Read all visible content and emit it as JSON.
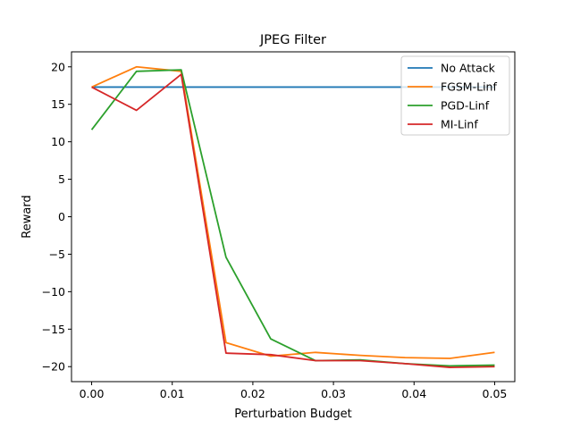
{
  "chart_data": {
    "type": "line",
    "title": "JPEG Filter",
    "xlabel": "Perturbation Budget",
    "ylabel": "Reward",
    "xlim": [
      -0.0025,
      0.0525
    ],
    "ylim": [
      -22,
      22
    ],
    "xticks": [
      0.0,
      0.01,
      0.02,
      0.03,
      0.04,
      0.05
    ],
    "xtick_labels": [
      "0.00",
      "0.01",
      "0.02",
      "0.03",
      "0.04",
      "0.05"
    ],
    "yticks": [
      -20,
      -15,
      -10,
      -5,
      0,
      5,
      10,
      15,
      20
    ],
    "ytick_labels": [
      "−20",
      "−15",
      "−10",
      "−5",
      "0",
      "5",
      "10",
      "15",
      "20"
    ],
    "grid": false,
    "legend_position": "top-right",
    "x": [
      0.0,
      0.00556,
      0.01111,
      0.01667,
      0.02222,
      0.02778,
      0.03333,
      0.03889,
      0.04444,
      0.05
    ],
    "series": [
      {
        "name": "No Attack",
        "color": "#1f77b4",
        "values": [
          17.3,
          17.3,
          17.3,
          17.3,
          17.3,
          17.3,
          17.3,
          17.3,
          17.3,
          17.3
        ]
      },
      {
        "name": "FGSM-Linf",
        "color": "#ff7f0e",
        "values": [
          17.3,
          20.0,
          19.4,
          -16.8,
          -18.6,
          -18.1,
          -18.5,
          -18.8,
          -18.9,
          -18.1
        ]
      },
      {
        "name": "PGD-Linf",
        "color": "#2ca02c",
        "values": [
          11.6,
          19.4,
          19.6,
          -5.4,
          -16.3,
          -19.2,
          -19.1,
          -19.6,
          -19.9,
          -19.8
        ]
      },
      {
        "name": "MI-Linf",
        "color": "#d62728",
        "values": [
          17.3,
          14.2,
          19.0,
          -18.2,
          -18.4,
          -19.2,
          -19.2,
          -19.6,
          -20.1,
          -20.0
        ]
      }
    ]
  }
}
